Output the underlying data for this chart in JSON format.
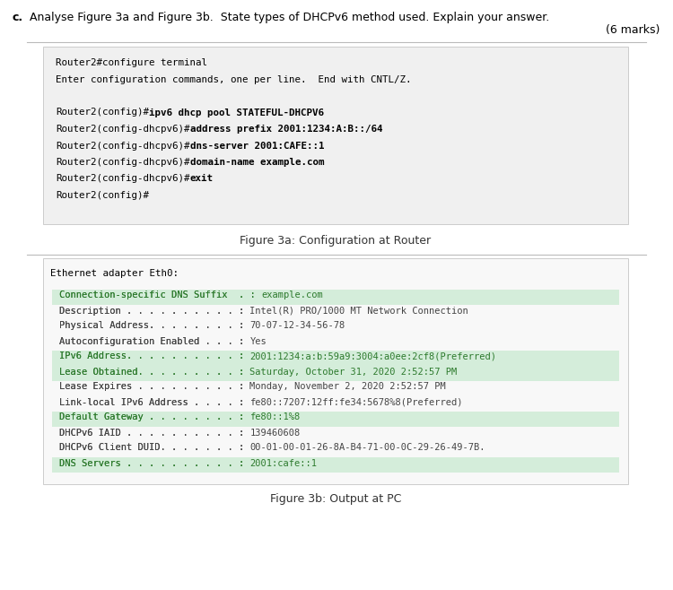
{
  "question_label": "c.",
  "question_text": "Analyse Figure 3a and Figure 3b.  State types of DHCPv6 method used. Explain your answer.",
  "marks_text": "(6 marks)",
  "fig3a_caption": "Figure 3a: Configuration at Router",
  "fig3b_caption": "Figure 3b: Output at PC",
  "fig3b_header": "Ethernet adapter Eth0:",
  "fig3a_plain_lines": [
    "Router2#configure terminal",
    "Enter configuration commands, one per line.  End with CNTL/Z.",
    ""
  ],
  "fig3a_bold_lines": [
    {
      "prefix": "Router2(config)#",
      "bold": "ipv6 dhcp pool STATEFUL-DHCPV6"
    },
    {
      "prefix": "Router2(config-dhcpv6)#",
      "bold": "address prefix 2001:1234:A:B::/64"
    },
    {
      "prefix": "Router2(config-dhcpv6)#",
      "bold": "dns-server 2001:CAFE::1"
    },
    {
      "prefix": "Router2(config-dhcpv6)#",
      "bold": "domain-name example.com"
    },
    {
      "prefix": "Router2(config-dhcpv6)#",
      "bold": "exit"
    }
  ],
  "fig3a_end_line": "Router2(config)#",
  "fig3b_lines": [
    {
      "label": "Connection-specific DNS Suffix  . : ",
      "value": "example.com",
      "highlight": true
    },
    {
      "label": "Description . . . . . . . . . . : ",
      "value": "Intel(R) PRO/1000 MT Network Connection",
      "highlight": false
    },
    {
      "label": "Physical Address. . . . . . . . : ",
      "value": "70-07-12-34-56-78",
      "highlight": false
    },
    {
      "label": "Autoconfiguration Enabled . . . : ",
      "value": "Yes",
      "highlight": false
    },
    {
      "label": "IPv6 Address. . . . . . . . . . : ",
      "value": "2001:1234:a:b:59a9:3004:a0ee:2cf8(Preferred)",
      "highlight": true
    },
    {
      "label": "Lease Obtained. . . . . . . . . : ",
      "value": "Saturday, October 31, 2020 2:52:57 PM",
      "highlight": true
    },
    {
      "label": "Lease Expires . . . . . . . . . : ",
      "value": "Monday, November 2, 2020 2:52:57 PM",
      "highlight": false
    },
    {
      "label": "Link-local IPv6 Address . . . . : ",
      "value": "fe80::7207:12ff:fe34:5678%8(Preferred)",
      "highlight": false
    },
    {
      "label": "Default Gateway . . . . . . . . : ",
      "value": "fe80::1%8",
      "highlight": true
    },
    {
      "label": "DHCPv6 IAID . . . . . . . . . . : ",
      "value": "139460608",
      "highlight": false
    },
    {
      "label": "DHCPv6 Client DUID. . . . . . . : ",
      "value": "00-01-00-01-26-8A-B4-71-00-0C-29-26-49-7B.",
      "highlight": false
    },
    {
      "label": "DNS Servers . . . . . . . . . . : ",
      "value": "2001:cafe::1",
      "highlight": true
    }
  ],
  "box_bg": "#f0f0f0",
  "border_color": "#cccccc",
  "highlight_bg": "#d4edda",
  "highlight_color": "#2d7a2d",
  "normal_color": "#000000",
  "caption_color": "#333333"
}
